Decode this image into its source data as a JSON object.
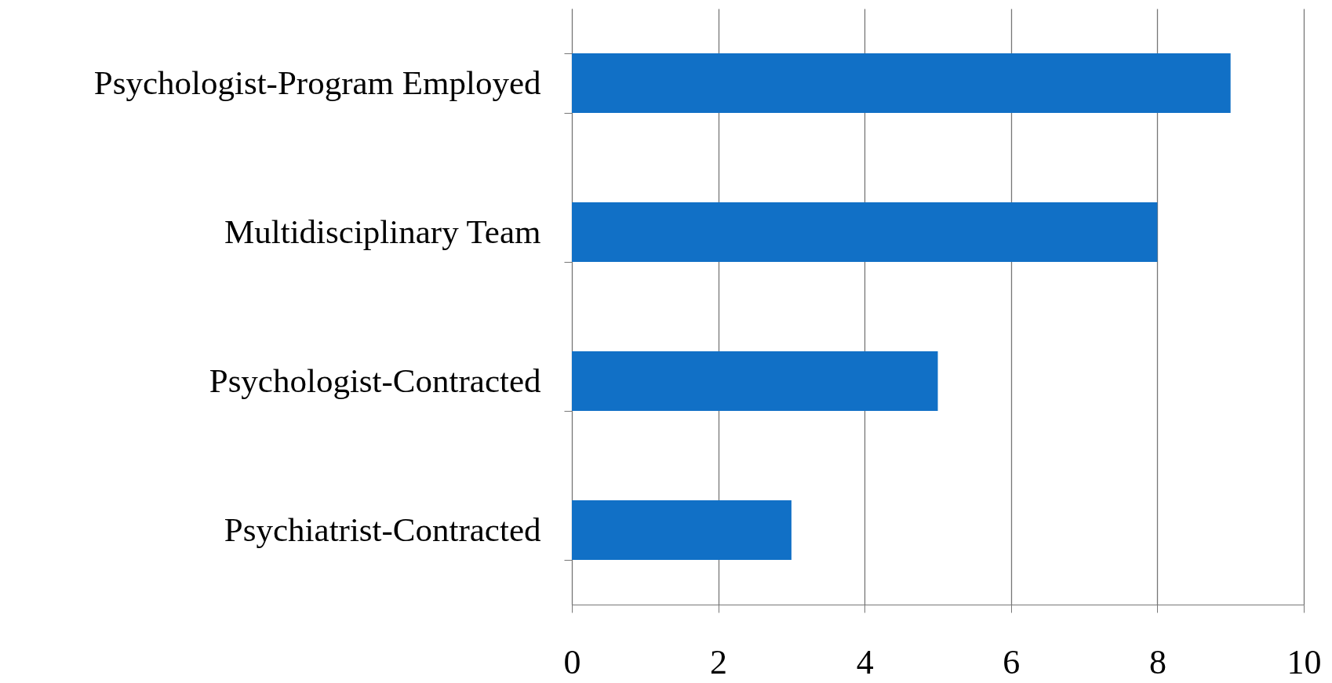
{
  "chart_data": {
    "type": "bar",
    "orientation": "horizontal",
    "categories": [
      "Psychologist-Program Employed",
      "Multidisciplinary Team",
      "Psychologist-Contracted",
      "Psychiatrist-Contracted"
    ],
    "values": [
      9,
      8,
      5,
      3
    ],
    "color": "#1170c6",
    "xlim": [
      0,
      10
    ],
    "xticks": [
      0,
      2,
      4,
      6,
      8,
      10
    ],
    "grid": "x"
  }
}
